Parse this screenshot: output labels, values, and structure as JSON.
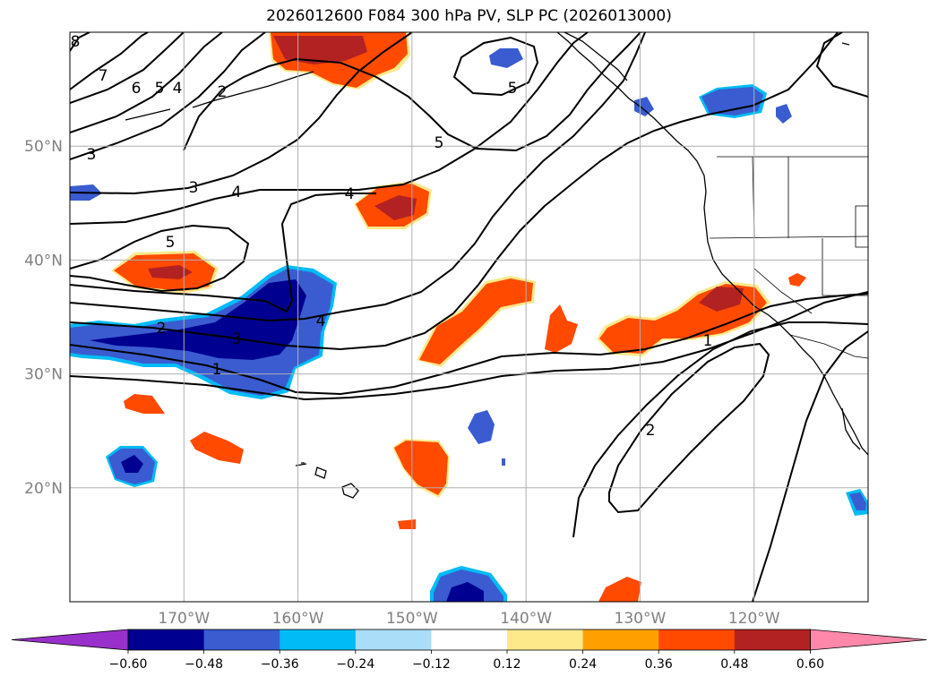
{
  "chart_data": {
    "type": "contour-map",
    "title": "2026012600 F084 300 hPa PV, SLP PC (2026013000)",
    "lat_ticks": [
      "50°N",
      "40°N",
      "30°N",
      "20°N"
    ],
    "lon_ticks": [
      "170°W",
      "160°W",
      "150°W",
      "140°W",
      "130°W",
      "120°W"
    ],
    "lat_values": [
      50,
      40,
      30,
      20
    ],
    "lon_values": [
      -170,
      -160,
      -150,
      -140,
      -130,
      -120
    ],
    "extent": {
      "lon_min": -180,
      "lon_max": -110,
      "lat_min": 10,
      "lat_max": 60
    },
    "grid": true,
    "colorbar": {
      "position": "bottom",
      "extend": "both",
      "ticks": [
        "−0.60",
        "−0.48",
        "−0.36",
        "−0.24",
        "−0.12",
        "0.12",
        "0.24",
        "0.36",
        "0.48",
        "0.60"
      ],
      "levels": [
        -0.6,
        -0.48,
        -0.36,
        -0.24,
        -0.12,
        0.12,
        0.24,
        0.36,
        0.48,
        0.6
      ],
      "colors": [
        "#9a30cc",
        "#000090",
        "#3a5cd0",
        "#00bbf5",
        "#aaddf8",
        "#ffffff",
        "#fde88a",
        "#ffa000",
        "#ff4a00",
        "#b22222",
        "#ff88aa"
      ]
    },
    "contour_labels": [
      "8",
      "7",
      "6",
      "5",
      "4",
      "2",
      "3",
      "3",
      "4",
      "4",
      "5",
      "5",
      "5",
      "4",
      "3",
      "2",
      "1",
      "1",
      "2"
    ],
    "pv_anomalies": [
      {
        "sign": "positive",
        "lon": -161,
        "lat": 59,
        "peak": 0.48
      },
      {
        "sign": "positive",
        "lon": -154,
        "lat": 44,
        "peak": 0.48
      },
      {
        "sign": "positive",
        "lon": -170,
        "lat": 39,
        "peak": 0.48
      },
      {
        "sign": "positive",
        "lon": -146,
        "lat": 33,
        "peak": 0.36
      },
      {
        "sign": "positive",
        "lon": -138,
        "lat": 33,
        "peak": 0.36
      },
      {
        "sign": "positive",
        "lon": -124,
        "lat": 36,
        "peak": 0.48
      },
      {
        "sign": "positive",
        "lon": -175,
        "lat": 27,
        "peak": 0.36
      },
      {
        "sign": "positive",
        "lon": -166,
        "lat": 23,
        "peak": 0.36
      },
      {
        "sign": "positive",
        "lon": -150,
        "lat": 22,
        "peak": 0.36
      },
      {
        "sign": "positive",
        "lon": -151,
        "lat": 17,
        "peak": 0.36
      },
      {
        "sign": "positive",
        "lon": -131,
        "lat": 11,
        "peak": 0.36
      },
      {
        "sign": "positive",
        "lon": -118,
        "lat": 39,
        "peak": 0.36
      },
      {
        "sign": "negative",
        "lon": -163,
        "lat": 34,
        "peak": -0.6
      },
      {
        "sign": "negative",
        "lon": -175,
        "lat": 22,
        "peak": -0.6
      },
      {
        "sign": "negative",
        "lon": -146,
        "lat": 11,
        "peak": -0.6
      },
      {
        "sign": "negative",
        "lon": -143,
        "lat": 25,
        "peak": -0.36
      },
      {
        "sign": "negative",
        "lon": -141,
        "lat": 58,
        "peak": -0.36
      },
      {
        "sign": "negative",
        "lon": -122,
        "lat": 54,
        "peak": -0.36
      },
      {
        "sign": "negative",
        "lon": -179,
        "lat": 46,
        "peak": -0.36
      },
      {
        "sign": "negative",
        "lon": -111,
        "lat": 19,
        "peak": -0.36
      }
    ]
  }
}
